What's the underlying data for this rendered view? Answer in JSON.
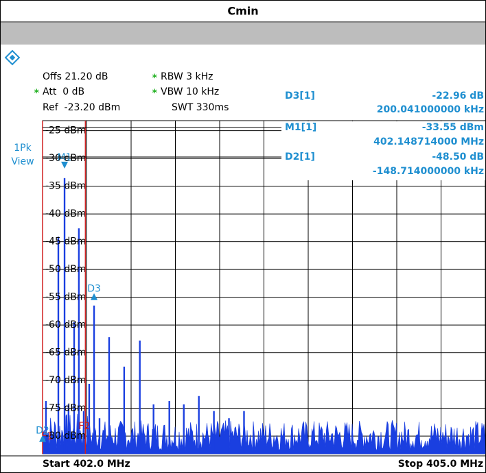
{
  "header": {
    "title": "Cmin"
  },
  "settings": [
    {
      "flag": null,
      "text": "Offs 21.20 dB"
    },
    {
      "flag": "*",
      "text": "RBW 3 kHz"
    },
    {
      "flag": "*",
      "text": "Att  0 dB"
    },
    {
      "flag": "*",
      "text": "VBW 10 kHz"
    },
    {
      "flag": null,
      "text": "Ref  -23.20 dBm"
    },
    {
      "flag": null,
      "text": "SWT 330ms"
    }
  ],
  "trace_label": [
    "1Pk",
    "View"
  ],
  "readouts": [
    {
      "name": "D3[1]",
      "value": "-22.96 dB",
      "position": "200.041000000 kHz"
    },
    {
      "name": "M1[1]",
      "value": "-33.55 dBm",
      "position": "402.148714000 MHz"
    },
    {
      "name": "D2[1]",
      "value": "-48.50 dB",
      "position": "-148.714000000 kHz"
    }
  ],
  "footer": {
    "start": "Start 402.0 MHz",
    "stop": "Stop 405.0 MHz"
  },
  "chart_data": {
    "type": "stem",
    "color": "#1a3fe0",
    "xlim": [
      402.0,
      405.0
    ],
    "ylim": [
      -83.2,
      -23.2
    ],
    "xticks": [
      402.0,
      402.3,
      402.6,
      402.9,
      403.2,
      403.5,
      403.8,
      404.1,
      404.4,
      404.7,
      405.0
    ],
    "yticks": [
      {
        "value": -25,
        "label": "-25 dBm"
      },
      {
        "value": -30,
        "label": "-30 dBm"
      },
      {
        "value": -35,
        "label": "-35 dBm"
      },
      {
        "value": -40,
        "label": "-40 dBm"
      },
      {
        "value": -45,
        "label": "-45 dBm"
      },
      {
        "value": -50,
        "label": "-50 dBm"
      },
      {
        "value": -55,
        "label": "-55 dBm"
      },
      {
        "value": -60,
        "label": "-60 dBm"
      },
      {
        "value": -65,
        "label": "-65 dBm"
      },
      {
        "value": -70,
        "label": "-70 dBm"
      },
      {
        "value": -75,
        "label": "-75 dBm"
      },
      {
        "value": -80,
        "label": "-80 dBm"
      }
    ],
    "grid": true,
    "x": [
      402.023,
      402.107,
      402.149,
      402.176,
      402.214,
      402.246,
      402.279,
      402.316,
      402.349,
      402.386,
      402.451,
      402.553,
      402.659,
      402.752,
      402.859,
      402.957,
      403.059,
      403.161,
      403.263,
      403.365
    ],
    "values": [
      -73.7,
      -44.1,
      -33.55,
      -74.3,
      -59.5,
      -42.6,
      -75.5,
      -70.6,
      -56.5,
      -76.8,
      -62.2,
      -67.5,
      -62.8,
      -74.3,
      -73.7,
      -74.3,
      -72.8,
      -75.5,
      -76.8,
      -75.5
    ],
    "markers": [
      {
        "label": "M1",
        "x": 402.149,
        "y": -33.55,
        "dir": "down"
      },
      {
        "label": "D3",
        "x": 402.349,
        "y": -56.5,
        "dir": "up"
      },
      {
        "label": "D2",
        "x": 402.0,
        "y": -82.05,
        "dir": "up"
      }
    ],
    "lines": [
      {
        "label": "F1",
        "x": 402.0,
        "color": "#d02020"
      },
      {
        "label": "F2",
        "x": 402.29,
        "color": "#d02020"
      }
    ]
  }
}
